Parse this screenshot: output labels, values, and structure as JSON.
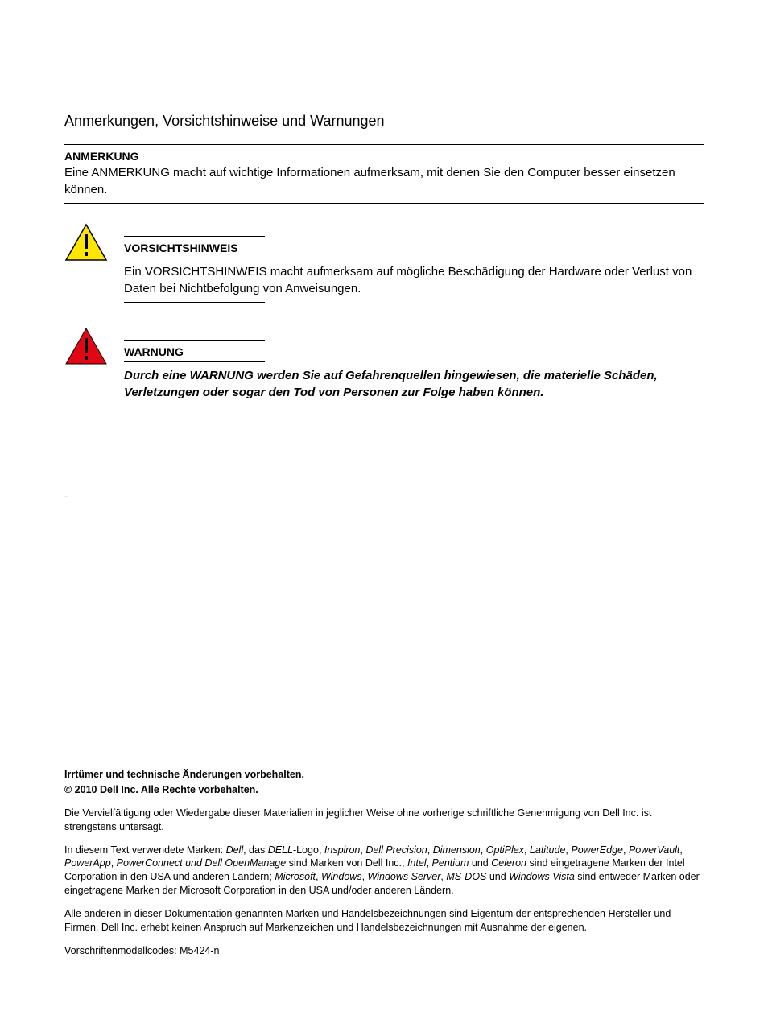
{
  "title": "Anmerkungen, Vorsichtshinweise und Warnungen",
  "note": {
    "heading": "ANMERKUNG",
    "body": "Eine ANMERKUNG macht auf wichtige Informationen aufmerksam, mit denen Sie den Computer besser einsetzen können."
  },
  "caution": {
    "heading": "VORSICHTSHINWEIS",
    "body": "Ein VORSICHTSHINWEIS macht aufmerksam auf mögliche Beschädigung der Hardware oder Verlust von Daten bei Nichtbefolgung von Anweisungen.",
    "icon": {
      "fill": "#ffe600",
      "stroke": "#000000",
      "bang": "#000000"
    }
  },
  "warning": {
    "heading": "WARNUNG",
    "body": "Durch eine WARNUNG werden Sie auf Gefahrenquellen hingewiesen, die materielle Schäden, Verletzungen oder sogar den Tod von Personen zur Folge haben können.",
    "icon": {
      "fill": "#e30613",
      "stroke": "#000000",
      "bang": "#000000"
    }
  },
  "dash": "-",
  "legal": {
    "line1": "Irrtümer und technische Änderungen vorbehalten.",
    "line2": "© 2010 Dell Inc. Alle Rechte vorbehalten.",
    "para2": "Die Vervielfältigung oder Wiedergabe dieser Materialien in jeglicher Weise ohne vorherige schriftliche Genehmigung von Dell Inc. ist strengstens untersagt.",
    "para3_html": "In diesem Text verwendete Marken: <i>Dell</i>, das <i>DELL</i>-Logo, <i>Inspiron</i>, <i>Dell Precision</i>, <i>Dimension</i>, <i>OptiPlex</i>, <i>Latitude</i>, <i>PowerEdge</i>, <i>PowerVault</i>, <i>PowerApp</i>, <i>PowerConnect und Dell OpenManage</i> sind Marken von Dell Inc.; <i>Intel</i>, <i>Pentium</i> und <i>Celeron</i> sind eingetragene Marken der Intel Corporation in den USA und anderen Ländern; <i>Microsoft</i>, <i>Windows</i>, <i>Windows Server</i>, <i>MS-DOS</i> und <i>Windows Vista</i> sind entweder Marken oder eingetragene Marken der Microsoft Corporation in den USA und/oder anderen Ländern.",
    "para4": "Alle anderen in dieser Dokumentation genannten Marken und Handelsbezeichnungen sind Eigentum der entsprechenden Hersteller und Firmen. Dell Inc. erhebt keinen Anspruch auf Markenzeichen und Handelsbezeichnungen mit Ausnahme der eigenen.",
    "para5": "Vorschriftenmodellcodes: M5424-n"
  }
}
